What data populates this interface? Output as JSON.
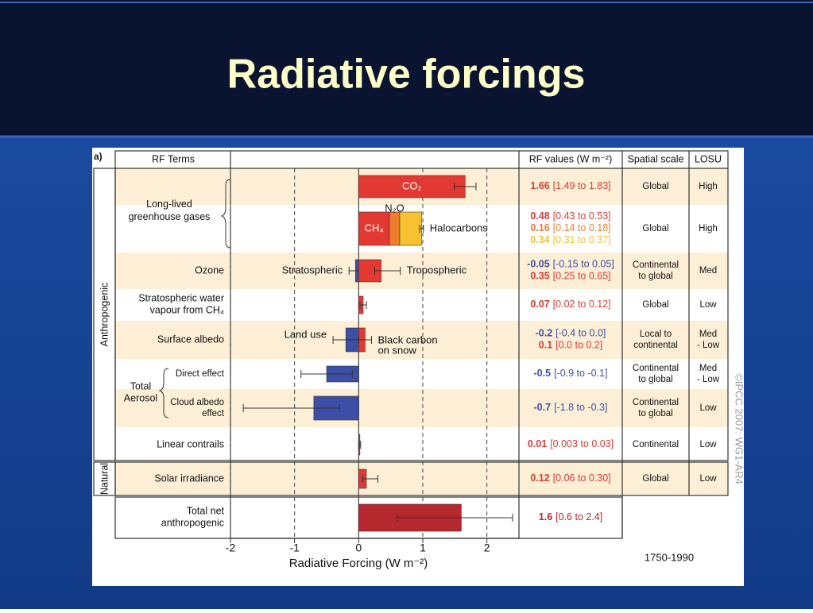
{
  "title": "Radiative forcings",
  "chart_data": {
    "type": "forcing-bar",
    "panel_label": "a)",
    "column_headers": [
      "RF Terms",
      "RF values (W m⁻²)",
      "Spatial scale",
      "LOSU"
    ],
    "group_labels": [
      "Anthropogenic",
      "Natural"
    ],
    "aerosol_group": [
      "Total",
      "Aerosol"
    ],
    "xlabel": "Radiative Forcing  (W m⁻²)",
    "xlim": [
      -2,
      2.5
    ],
    "xticks": [
      -2,
      -1,
      0,
      1,
      2
    ],
    "period": "1750-1990",
    "copyright": "©IPCC  2007: WG1-AR4",
    "rows": [
      {
        "term": [
          "Long-lived",
          "greenhouse gases"
        ],
        "scale": "Global",
        "losu": "High",
        "bars": [
          {
            "name": "CO₂",
            "value": 1.66,
            "low": 1.49,
            "high": 1.83,
            "color": "#e23a33",
            "range_label": "[1.49 to 1.83]"
          }
        ]
      },
      {
        "scale": "Global",
        "losu": "High",
        "stacked": true,
        "bars": [
          {
            "name": "CH₄",
            "value": 0.48,
            "low": 0.43,
            "high": 0.53,
            "color": "#e23a33",
            "range_label": "[0.43 to 0.53]"
          },
          {
            "name": "N₂O",
            "value": 0.16,
            "low": 0.14,
            "high": 0.18,
            "color": "#ef7d2e",
            "range_label": "[0.14 to 0.18]"
          },
          {
            "name": "Halocarbons",
            "value": 0.34,
            "low": 0.31,
            "high": 0.37,
            "color": "#f6c231",
            "range_label": "[0.31 to 0.37]"
          }
        ]
      },
      {
        "term": "Ozone",
        "scale": [
          "Continental",
          "to global"
        ],
        "losu": "Med",
        "bars": [
          {
            "name": "Stratospheric",
            "value": -0.05,
            "low": -0.15,
            "high": 0.05,
            "color": "#3d4ea6",
            "range_label": "[-0.15 to 0.05]"
          },
          {
            "name": "Tropospheric",
            "value": 0.35,
            "low": 0.25,
            "high": 0.65,
            "color": "#e23a33",
            "range_label": "[0.25 to 0.65]"
          }
        ]
      },
      {
        "term": [
          "Stratospheric water",
          "vapour from CH₄"
        ],
        "scale": "Global",
        "losu": "Low",
        "bars": [
          {
            "value": 0.07,
            "low": 0.02,
            "high": 0.12,
            "color": "#e23a33",
            "range_label": "[0.02 to 0.12]"
          }
        ]
      },
      {
        "term": "Surface albedo",
        "scale": [
          "Local to",
          "continental"
        ],
        "losu": [
          "Med",
          "- Low"
        ],
        "bars": [
          {
            "name": "Land use",
            "value": -0.2,
            "low": -0.4,
            "high": 0.0,
            "color": "#3d4ea6",
            "range_label": "[-0.4 to 0.0]"
          },
          {
            "name": [
              "Black carbon",
              "on snow"
            ],
            "value": 0.1,
            "low": 0.0,
            "high": 0.2,
            "color": "#e23a33",
            "range_label": "[0.0 to 0.2]"
          }
        ]
      },
      {
        "term": "Direct effect",
        "scale": [
          "Continental",
          "to global"
        ],
        "losu": [
          "Med",
          "- Low"
        ],
        "bars": [
          {
            "value": -0.5,
            "low": -0.9,
            "high": -0.1,
            "color": "#3d4ea6",
            "range_label": "[-0.9 to -0.1]"
          }
        ]
      },
      {
        "term": [
          "Cloud albedo",
          "effect"
        ],
        "scale": [
          "Continental",
          "to global"
        ],
        "losu": "Low",
        "bars": [
          {
            "value": -0.7,
            "low": -1.8,
            "high": -0.3,
            "color": "#3d4ea6",
            "range_label": "[-1.8 to -0.3]"
          }
        ]
      },
      {
        "term": "Linear contrails",
        "scale": "Continental",
        "losu": "Low",
        "bars": [
          {
            "value": 0.01,
            "low": 0.003,
            "high": 0.03,
            "color": "#e23a33",
            "range_label": "[0.003 to 0.03]"
          }
        ]
      },
      {
        "term": "Solar irradiance",
        "scale": "Global",
        "losu": "Low",
        "bars": [
          {
            "value": 0.12,
            "low": 0.06,
            "high": 0.3,
            "color": "#e23a33",
            "range_label": "[0.06 to 0.30]"
          }
        ]
      },
      {
        "term": [
          "Total net",
          "anthropogenic"
        ],
        "bars": [
          {
            "value": 1.6,
            "low": 0.6,
            "high": 2.4,
            "color": "#b4282e",
            "range_label": "[0.6 to 2.4]"
          }
        ]
      }
    ]
  }
}
